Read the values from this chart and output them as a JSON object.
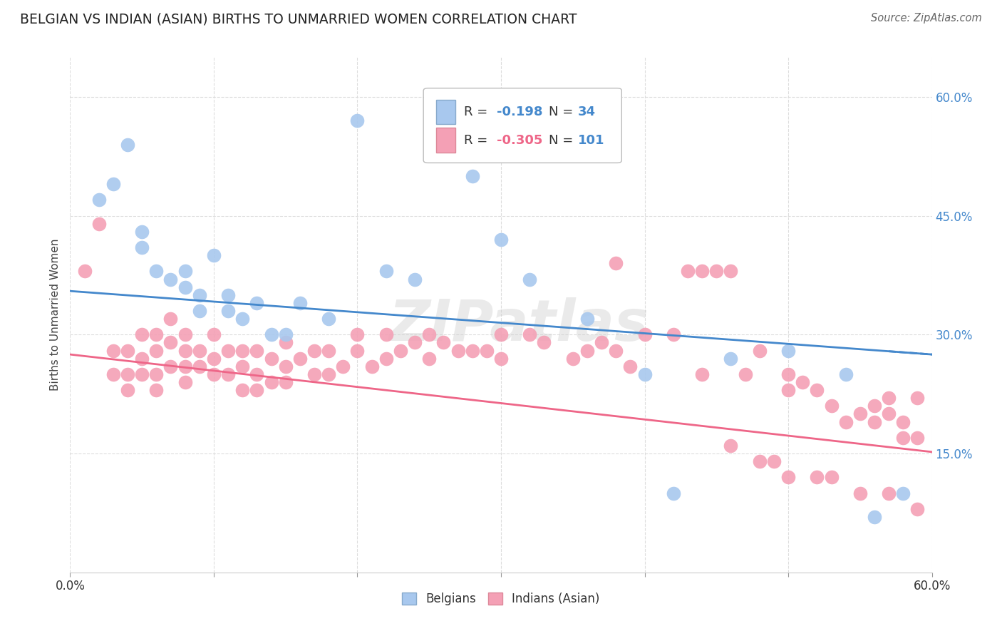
{
  "title": "BELGIAN VS INDIAN (ASIAN) BIRTHS TO UNMARRIED WOMEN CORRELATION CHART",
  "source": "Source: ZipAtlas.com",
  "ylabel": "Births to Unmarried Women",
  "xlim": [
    0.0,
    0.6
  ],
  "ylim": [
    0.0,
    0.65
  ],
  "belgian_color": "#a8c8ee",
  "indian_color": "#f4a0b5",
  "belgian_line_color": "#4488cc",
  "indian_line_color": "#ee6688",
  "watermark": "ZIPatlas",
  "background_color": "#ffffff",
  "grid_color": "#dddddd",
  "belgian_scatter_x": [
    0.02,
    0.03,
    0.04,
    0.05,
    0.05,
    0.06,
    0.07,
    0.08,
    0.08,
    0.09,
    0.09,
    0.1,
    0.11,
    0.11,
    0.12,
    0.13,
    0.14,
    0.15,
    0.16,
    0.18,
    0.2,
    0.22,
    0.24,
    0.28,
    0.3,
    0.32,
    0.36,
    0.4,
    0.42,
    0.46,
    0.5,
    0.54,
    0.56,
    0.58
  ],
  "belgian_scatter_y": [
    0.47,
    0.49,
    0.54,
    0.43,
    0.41,
    0.38,
    0.37,
    0.38,
    0.36,
    0.35,
    0.33,
    0.4,
    0.35,
    0.33,
    0.32,
    0.34,
    0.3,
    0.3,
    0.34,
    0.32,
    0.57,
    0.38,
    0.37,
    0.5,
    0.42,
    0.37,
    0.32,
    0.25,
    0.1,
    0.27,
    0.28,
    0.25,
    0.07,
    0.1
  ],
  "indian_scatter_x": [
    0.01,
    0.02,
    0.03,
    0.03,
    0.04,
    0.04,
    0.04,
    0.05,
    0.05,
    0.05,
    0.06,
    0.06,
    0.06,
    0.06,
    0.07,
    0.07,
    0.07,
    0.08,
    0.08,
    0.08,
    0.08,
    0.09,
    0.09,
    0.1,
    0.1,
    0.1,
    0.11,
    0.11,
    0.12,
    0.12,
    0.12,
    0.13,
    0.13,
    0.13,
    0.14,
    0.14,
    0.15,
    0.15,
    0.15,
    0.16,
    0.17,
    0.17,
    0.18,
    0.18,
    0.19,
    0.2,
    0.2,
    0.21,
    0.22,
    0.22,
    0.23,
    0.24,
    0.25,
    0.25,
    0.26,
    0.27,
    0.28,
    0.29,
    0.3,
    0.3,
    0.32,
    0.33,
    0.35,
    0.36,
    0.37,
    0.38,
    0.38,
    0.39,
    0.4,
    0.42,
    0.43,
    0.44,
    0.45,
    0.46,
    0.47,
    0.48,
    0.5,
    0.5,
    0.51,
    0.52,
    0.53,
    0.54,
    0.55,
    0.56,
    0.56,
    0.57,
    0.57,
    0.58,
    0.58,
    0.59,
    0.44,
    0.46,
    0.48,
    0.49,
    0.5,
    0.52,
    0.53,
    0.55,
    0.57,
    0.59,
    0.59
  ],
  "indian_scatter_y": [
    0.38,
    0.44,
    0.28,
    0.25,
    0.28,
    0.25,
    0.23,
    0.3,
    0.27,
    0.25,
    0.3,
    0.28,
    0.25,
    0.23,
    0.32,
    0.29,
    0.26,
    0.3,
    0.28,
    0.26,
    0.24,
    0.28,
    0.26,
    0.3,
    0.27,
    0.25,
    0.28,
    0.25,
    0.28,
    0.26,
    0.23,
    0.28,
    0.25,
    0.23,
    0.27,
    0.24,
    0.29,
    0.26,
    0.24,
    0.27,
    0.28,
    0.25,
    0.28,
    0.25,
    0.26,
    0.3,
    0.28,
    0.26,
    0.3,
    0.27,
    0.28,
    0.29,
    0.3,
    0.27,
    0.29,
    0.28,
    0.28,
    0.28,
    0.3,
    0.27,
    0.3,
    0.29,
    0.27,
    0.28,
    0.29,
    0.39,
    0.28,
    0.26,
    0.3,
    0.3,
    0.38,
    0.38,
    0.38,
    0.38,
    0.25,
    0.28,
    0.25,
    0.23,
    0.24,
    0.23,
    0.21,
    0.19,
    0.2,
    0.21,
    0.19,
    0.22,
    0.2,
    0.19,
    0.17,
    0.17,
    0.25,
    0.16,
    0.14,
    0.14,
    0.12,
    0.12,
    0.12,
    0.1,
    0.1,
    0.08,
    0.22
  ],
  "belgian_line_x0": 0.0,
  "belgian_line_y0": 0.355,
  "belgian_line_x1": 0.6,
  "belgian_line_y1": 0.275,
  "indian_line_x0": 0.0,
  "indian_line_y0": 0.275,
  "indian_line_x1": 0.6,
  "indian_line_y1": 0.152
}
